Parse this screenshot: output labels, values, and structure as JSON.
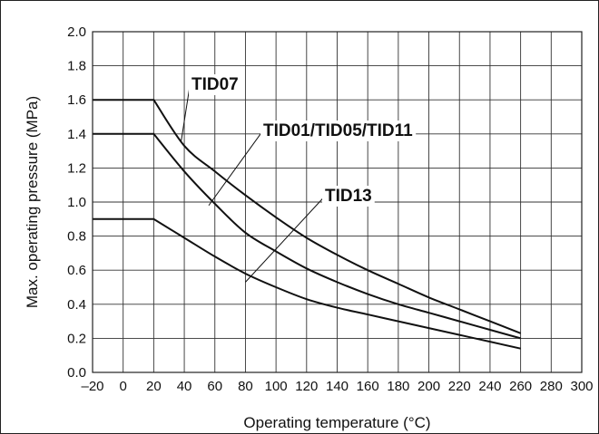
{
  "chart_data": {
    "type": "line",
    "title": "",
    "xlabel": "Operating temperature (°C)",
    "ylabel": "Max. operating pressure (MPa)",
    "xlim": [
      -20,
      300
    ],
    "ylim": [
      0.0,
      2.0
    ],
    "x_ticks": [
      -20,
      0,
      20,
      40,
      60,
      80,
      100,
      120,
      140,
      160,
      180,
      200,
      220,
      240,
      260,
      280,
      300
    ],
    "x_tick_labels": [
      "–20",
      "0",
      "20",
      "40",
      "60",
      "80",
      "100",
      "120",
      "140",
      "160",
      "180",
      "200",
      "220",
      "240",
      "260",
      "280",
      "300"
    ],
    "y_ticks": [
      0.0,
      0.2,
      0.4,
      0.6,
      0.8,
      1.0,
      1.2,
      1.4,
      1.6,
      1.8,
      2.0
    ],
    "y_tick_labels": [
      "0.0",
      "0.2",
      "0.4",
      "0.6",
      "0.8",
      "1.0",
      "1.2",
      "1.4",
      "1.6",
      "1.8",
      "2.0"
    ],
    "grid": true,
    "series": [
      {
        "name": "TID07",
        "points": [
          [
            -20,
            1.6
          ],
          [
            20,
            1.6
          ],
          [
            40,
            1.33
          ],
          [
            60,
            1.18
          ],
          [
            80,
            1.04
          ],
          [
            100,
            0.91
          ],
          [
            120,
            0.79
          ],
          [
            140,
            0.69
          ],
          [
            160,
            0.6
          ],
          [
            180,
            0.52
          ],
          [
            200,
            0.44
          ],
          [
            220,
            0.37
          ],
          [
            240,
            0.3
          ],
          [
            260,
            0.23
          ]
        ],
        "leader_at": [
          38,
          1.36
        ]
      },
      {
        "name": "TID01/TID05/TID11",
        "points": [
          [
            -20,
            1.4
          ],
          [
            20,
            1.4
          ],
          [
            40,
            1.18
          ],
          [
            60,
            0.99
          ],
          [
            80,
            0.82
          ],
          [
            100,
            0.71
          ],
          [
            120,
            0.61
          ],
          [
            140,
            0.53
          ],
          [
            160,
            0.46
          ],
          [
            180,
            0.4
          ],
          [
            200,
            0.35
          ],
          [
            220,
            0.3
          ],
          [
            240,
            0.25
          ],
          [
            260,
            0.2
          ]
        ],
        "leader_at": [
          56,
          0.98
        ]
      },
      {
        "name": "TID13",
        "points": [
          [
            -20,
            0.9
          ],
          [
            20,
            0.9
          ],
          [
            40,
            0.79
          ],
          [
            60,
            0.68
          ],
          [
            80,
            0.58
          ],
          [
            100,
            0.5
          ],
          [
            120,
            0.43
          ],
          [
            140,
            0.38
          ],
          [
            160,
            0.34
          ],
          [
            180,
            0.3
          ],
          [
            200,
            0.26
          ],
          [
            220,
            0.22
          ],
          [
            240,
            0.18
          ],
          [
            260,
            0.14
          ]
        ],
        "leader_at": [
          80,
          0.53
        ]
      }
    ]
  }
}
